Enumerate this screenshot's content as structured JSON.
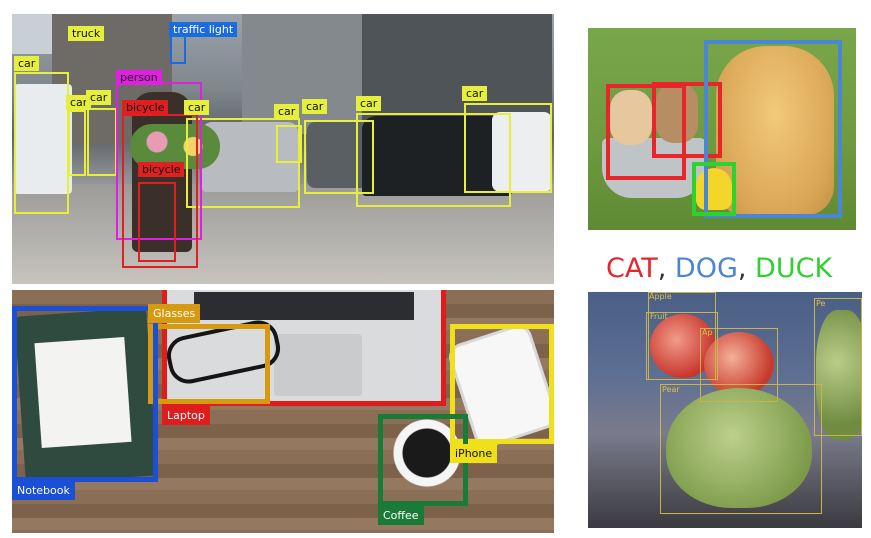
{
  "street": {
    "labels": {
      "truck": "truck",
      "traffic_light": "traffic light",
      "car1": "car",
      "person": "person",
      "car2": "car",
      "car3": "car",
      "bicycle1": "bicycle",
      "car4": "car",
      "car5": "car",
      "car6": "car",
      "car7": "car",
      "car8": "car",
      "bicycle2": "bicycle"
    }
  },
  "caption": {
    "cat": "CAT",
    "sep1": ", ",
    "dog": "DOG",
    "sep2": ", ",
    "duck": "DUCK"
  },
  "desk": {
    "labels": {
      "glasses": "Glasses",
      "laptop": "Laptop",
      "iphone": "iPhone",
      "notebook": "Notebook",
      "coffee": "Coffee"
    }
  },
  "fruit": {
    "labels": {
      "apple1": "Apple",
      "fruit": "Fruit",
      "apple2": "Ap",
      "pear1": "Pear",
      "pear2": "Pe"
    }
  },
  "colors": {
    "street_label_green": "#e6f03a",
    "traffic_light": "#1a6be0",
    "person": "#e020e0",
    "bicycle": "#e02020",
    "cat": "#e8262a",
    "dog": "#4a86d6",
    "duck": "#2ed22e",
    "glasses": "#d69a10",
    "laptop": "#e01d1d",
    "iphone": "#f0e01a",
    "notebook": "#1a4fd6",
    "coffee": "#1a7a38",
    "fruit_box": "#c9b44a"
  }
}
